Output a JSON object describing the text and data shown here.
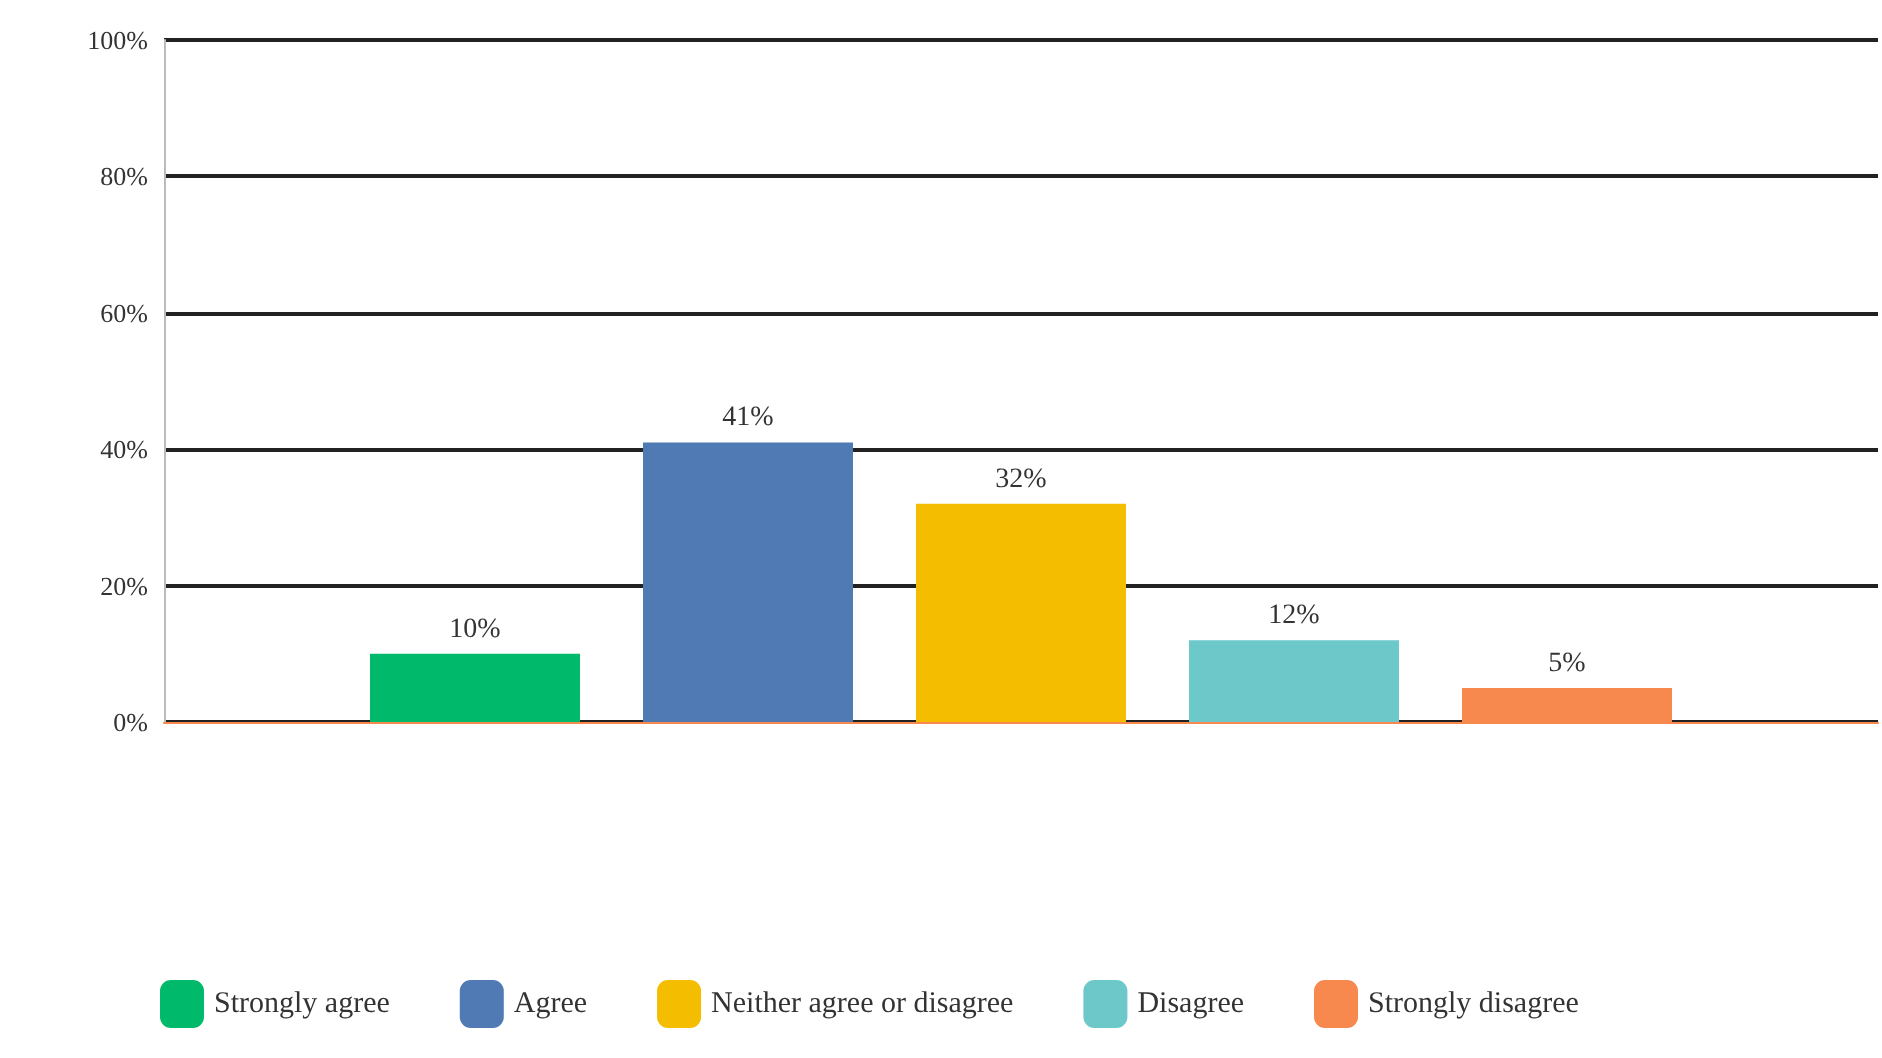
{
  "chart_data": {
    "type": "bar",
    "categories": [
      null
    ],
    "series": [
      {
        "name": "Strongly agree",
        "color": "#00b96b",
        "values": [
          10
        ],
        "value_labels": [
          "10%"
        ]
      },
      {
        "name": "Agree",
        "color": "#4f7ab4",
        "values": [
          41
        ],
        "value_labels": [
          "41%"
        ]
      },
      {
        "name": "Neither agree or disagree",
        "color": "#f5bd00",
        "values": [
          32
        ],
        "value_labels": [
          "32%"
        ]
      },
      {
        "name": "Disagree",
        "color": "#6cc8c9",
        "values": [
          12
        ],
        "value_labels": [
          "12%"
        ]
      },
      {
        "name": "Strongly disagree",
        "color": "#f7894f",
        "values": [
          5
        ],
        "value_labels": [
          "5%"
        ]
      }
    ],
    "ylim": [
      0,
      100
    ],
    "yticks": [
      {
        "value": 0,
        "label": "0%"
      },
      {
        "value": 20,
        "label": "20%"
      },
      {
        "value": 40,
        "label": "40%"
      },
      {
        "value": 60,
        "label": "60%"
      },
      {
        "value": 80,
        "label": "80%"
      },
      {
        "value": 100,
        "label": "100%"
      }
    ],
    "grid": "y",
    "legend": "bottom"
  }
}
